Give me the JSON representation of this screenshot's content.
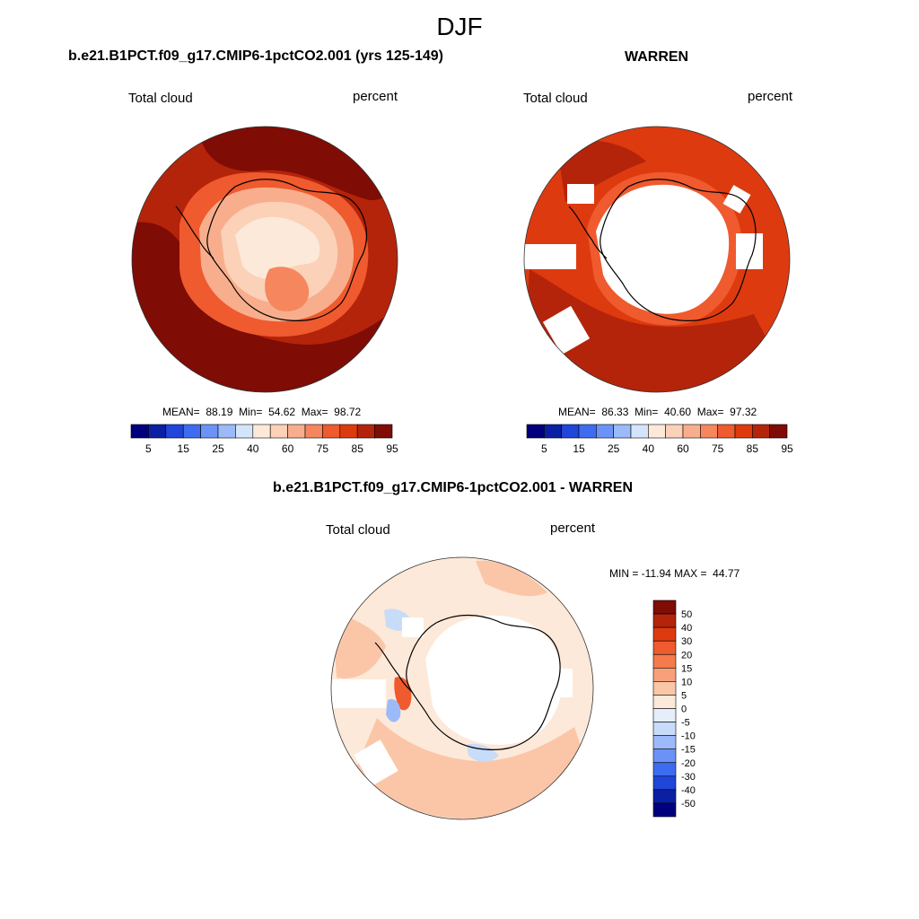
{
  "figure": {
    "title": "DJF"
  },
  "panels": [
    {
      "title": "b.e21.B1PCT.f09_g17.CMIP6-1pctCO2.001 (yrs 125-149)",
      "left_label": "Total cloud",
      "right_label": "percent",
      "stats": {
        "mean_label": "MEAN=",
        "mean": "88.19",
        "min_label": "Min=",
        "min": "54.62",
        "max_label": "Max=",
        "max": "98.72"
      }
    },
    {
      "title": "WARREN",
      "left_label": "Total cloud",
      "right_label": "percent",
      "stats": {
        "mean_label": "MEAN=",
        "mean": "86.33",
        "min_label": "Min=",
        "min": "40.60",
        "max_label": "Max=",
        "max": "97.32"
      }
    },
    {
      "title": "b.e21.B1PCT.f09_g17.CMIP6-1pctCO2.001 - WARREN",
      "left_label": "Total cloud",
      "right_label": "percent",
      "stats_line": "MIN = -11.94 MAX =  44.77"
    }
  ],
  "colors": {
    "abs_scale": [
      "#00007f",
      "#0a1fa3",
      "#1f45d9",
      "#3d6cf0",
      "#6b93f7",
      "#9cbaf9",
      "#d4e5fb",
      "#fde9d9",
      "#fbd1b8",
      "#f8ae8d",
      "#f5865e",
      "#ef5a2e",
      "#de3a0f",
      "#b4240a",
      "#7f0c05"
    ],
    "diff_scale": [
      "#00007f",
      "#0a1fa3",
      "#1f45d9",
      "#3d6cf0",
      "#6b93f7",
      "#9cbaf9",
      "#c7dcf9",
      "#e6eef9",
      "#fde9d9",
      "#fbc6a8",
      "#f8a07a",
      "#f57a4c",
      "#ef5a2e",
      "#de3a0f",
      "#b4240a",
      "#7f0c05"
    ],
    "map_outline": "#000000"
  },
  "chart_data": [
    {
      "type": "heatmap",
      "title": "b.e21.B1PCT.f09_g17.CMIP6-1pctCO2.001 (yrs 125-149)",
      "projection": "south polar stereographic",
      "variable": "Total cloud",
      "units": "percent",
      "mean": 88.19,
      "min": 54.62,
      "max": 98.72,
      "colorbar_ticks": [
        "5",
        "15",
        "25",
        "40",
        "60",
        "75",
        "85",
        "95"
      ],
      "colorbar_orientation": "horizontal"
    },
    {
      "type": "heatmap",
      "title": "WARREN",
      "projection": "south polar stereographic",
      "variable": "Total cloud",
      "units": "percent",
      "mean": 86.33,
      "min": 40.6,
      "max": 97.32,
      "colorbar_ticks": [
        "5",
        "15",
        "25",
        "40",
        "60",
        "75",
        "85",
        "95"
      ],
      "colorbar_orientation": "horizontal"
    },
    {
      "type": "heatmap",
      "title": "b.e21.B1PCT.f09_g17.CMIP6-1pctCO2.001 - WARREN",
      "projection": "south polar stereographic",
      "variable": "Total cloud",
      "units": "percent",
      "min": -11.94,
      "max": 44.77,
      "colorbar_ticks": [
        "50",
        "40",
        "30",
        "20",
        "15",
        "10",
        "5",
        "0",
        "-5",
        "-10",
        "-15",
        "-20",
        "-30",
        "-40",
        "-50"
      ],
      "colorbar_orientation": "vertical"
    }
  ]
}
